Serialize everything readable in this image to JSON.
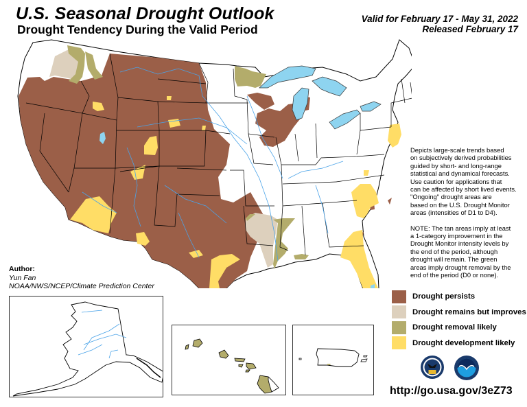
{
  "header": {
    "title": "U.S. Seasonal Drought Outlook",
    "subtitle": "Drought Tendency During the Valid Period",
    "valid_period": "Valid for February 17 - May 31, 2022",
    "released": "Released February 17"
  },
  "note": {
    "paragraph1": [
      "Depicts large-scale trends based",
      "on subjectively derived probabilities",
      "guided by short- and long-range",
      "statistical and dynamical forecasts.",
      "Use caution for applications that",
      "can be affected by short lived events.",
      "\"Ongoing\" drought areas are",
      "based on the U.S. Drought Monitor",
      "areas (intensities of D1 to D4)."
    ],
    "paragraph2": [
      "NOTE: The tan areas imply at least",
      "a 1-category improvement in the",
      "Drought Monitor intensity levels by",
      "the end of the period, although",
      "drought will remain. The green",
      "areas imply drought removal by the",
      "end of the period (D0 or none)."
    ]
  },
  "author": {
    "label": "Author:",
    "name": "Yun Fan",
    "organization": "NOAA/NWS/NCEP/Climate Prediction Center"
  },
  "legend": {
    "items": [
      {
        "label": "Drought persists",
        "color": "#9b5f48"
      },
      {
        "label": "Drought remains but improves",
        "color": "#ddd0bd"
      },
      {
        "label": "Drought removal likely",
        "color": "#b3ac6b"
      },
      {
        "label": "Drought development likely",
        "color": "#ffdd66"
      }
    ]
  },
  "colors": {
    "persists": "#9b5f48",
    "improves": "#ddd0bd",
    "removal": "#b3ac6b",
    "development": "#ffdd66",
    "water": "#8ed4f0",
    "river": "#4aa3e8"
  },
  "insets": {
    "alaska": "alaska-inset",
    "hawaii": "hawaii-inset",
    "puerto_rico": "puerto-rico-inset"
  },
  "logos": [
    "doc-seal-icon",
    "noaa-logo-icon"
  ],
  "footer": {
    "url": "http://go.usa.gov/3eZ73"
  }
}
